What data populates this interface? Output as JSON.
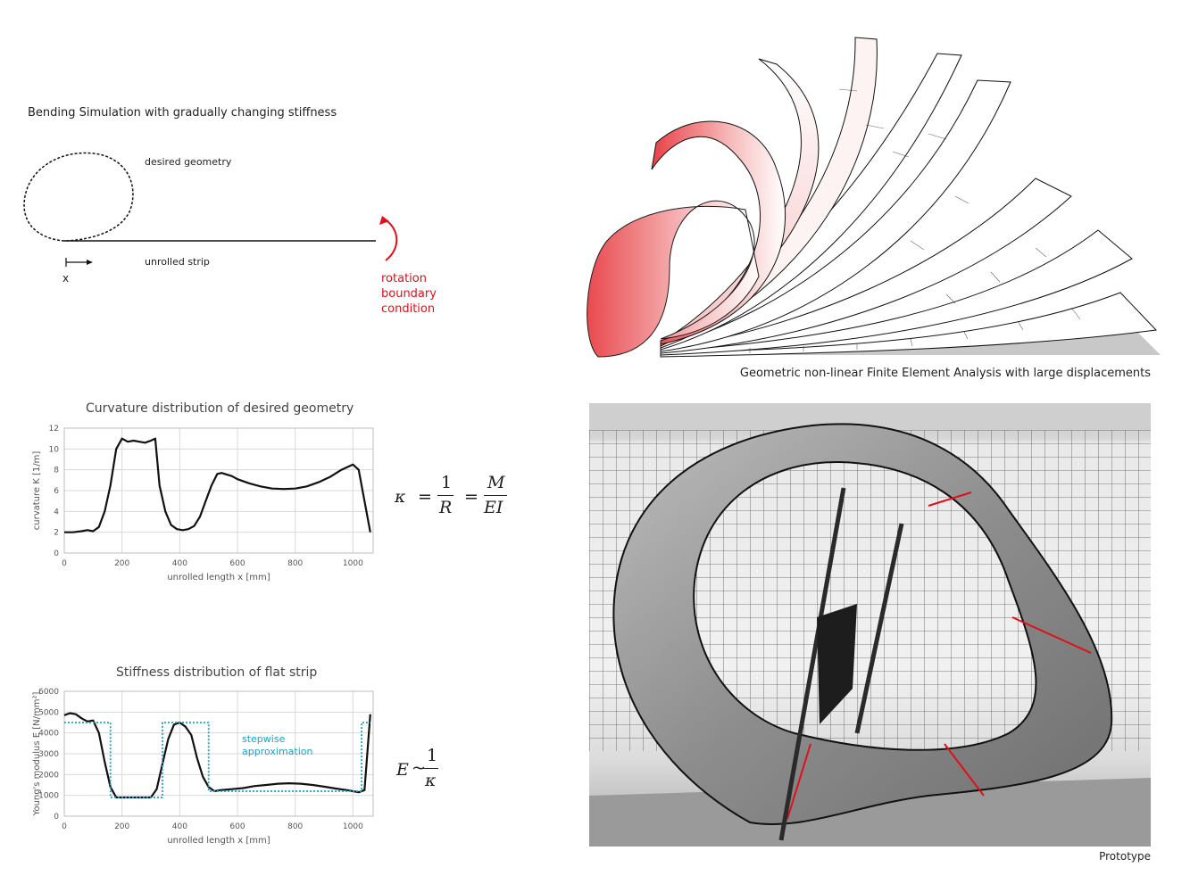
{
  "top_left": {
    "title": "Bending Simulation with gradually changing stiffness",
    "desired_geometry_label": "desired geometry",
    "unrolled_strip_label": "unrolled strip",
    "x_label": "x",
    "boundary_label_1": "rotation",
    "boundary_label_2": "boundary",
    "boundary_label_3": "condition",
    "accent_color": "#e0101a"
  },
  "fea": {
    "caption": "Geometric non-linear Finite Element Analysis with large displacements"
  },
  "prototype": {
    "caption": "Prototype"
  },
  "equations": {
    "curvature": {
      "kappa": "κ",
      "eq1": "=",
      "num1": "1",
      "den1": "R",
      "eq2": "=",
      "num2": "M",
      "den2": "EI"
    },
    "stiffness": {
      "lhs": "E",
      "tilde": "~",
      "num": "1",
      "den": "κ"
    }
  },
  "chart_data": [
    {
      "type": "line",
      "title": "Curvature distribution of desired geometry",
      "xlabel": "unrolled length x [mm]",
      "ylabel": "curvature K [1/m]",
      "xlim": [
        0,
        1070
      ],
      "ylim": [
        0,
        12
      ],
      "xticks": [
        "0",
        "200",
        "400",
        "600",
        "800",
        "1000"
      ],
      "yticks": [
        "0",
        "2",
        "4",
        "6",
        "8",
        "10",
        "12"
      ],
      "xtick_values": [
        0,
        200,
        400,
        600,
        800,
        1000
      ],
      "ytick_values": [
        0,
        2,
        4,
        6,
        8,
        10,
        12
      ],
      "grid": true,
      "series": [
        {
          "color": "#111111",
          "x": [
            0,
            30,
            60,
            80,
            100,
            120,
            140,
            160,
            180,
            200,
            220,
            240,
            260,
            280,
            300,
            315,
            330,
            350,
            370,
            390,
            410,
            430,
            450,
            470,
            490,
            510,
            530,
            545,
            580,
            600,
            640,
            680,
            720,
            760,
            800,
            840,
            880,
            920,
            960,
            1000,
            1020,
            1040,
            1060
          ],
          "y": [
            2.0,
            2.0,
            2.1,
            2.2,
            2.1,
            2.5,
            4.0,
            6.5,
            10.0,
            11.0,
            10.7,
            10.8,
            10.7,
            10.6,
            10.8,
            11.0,
            6.5,
            4.0,
            2.7,
            2.3,
            2.2,
            2.3,
            2.6,
            3.5,
            5.0,
            6.5,
            7.6,
            7.7,
            7.4,
            7.1,
            6.7,
            6.4,
            6.2,
            6.15,
            6.2,
            6.4,
            6.8,
            7.3,
            8.0,
            8.5,
            8.0,
            5.0,
            2.0
          ]
        }
      ]
    },
    {
      "type": "line",
      "title": "Stiffness distribution of flat strip",
      "xlabel": "unrolled length x [mm]",
      "ylabel": "Young's modulus E [N/mm²]",
      "xlim": [
        0,
        1070
      ],
      "ylim": [
        0,
        6000
      ],
      "xticks": [
        "0",
        "200",
        "400",
        "600",
        "800",
        "1000"
      ],
      "yticks": [
        "0",
        "1000",
        "2000",
        "3000",
        "4000",
        "5000",
        "6000"
      ],
      "xtick_values": [
        0,
        200,
        400,
        600,
        800,
        1000
      ],
      "ytick_values": [
        0,
        1000,
        2000,
        3000,
        4000,
        5000,
        6000
      ],
      "grid": true,
      "annotation": [
        "stepwise",
        "approximation"
      ],
      "series": [
        {
          "color": "#111111",
          "x": [
            0,
            20,
            40,
            60,
            80,
            100,
            120,
            140,
            160,
            180,
            200,
            220,
            240,
            260,
            280,
            300,
            320,
            340,
            360,
            380,
            400,
            420,
            440,
            460,
            480,
            500,
            520,
            540,
            580,
            620,
            660,
            700,
            740,
            780,
            820,
            860,
            900,
            940,
            980,
            1020,
            1040,
            1060
          ],
          "y": [
            4850,
            4950,
            4900,
            4700,
            4550,
            4600,
            4000,
            2600,
            1400,
            900,
            900,
            900,
            900,
            900,
            900,
            900,
            1300,
            2500,
            3700,
            4400,
            4500,
            4300,
            3900,
            2800,
            1900,
            1400,
            1200,
            1250,
            1300,
            1350,
            1450,
            1500,
            1560,
            1580,
            1560,
            1500,
            1420,
            1330,
            1250,
            1150,
            1250,
            4900
          ]
        },
        {
          "color": "#1aa3c8",
          "dashed": true,
          "x": [
            0,
            160,
            160,
            340,
            340,
            500,
            500,
            1030,
            1030,
            1060
          ],
          "y": [
            4500,
            4500,
            900,
            900,
            4500,
            4500,
            1200,
            1200,
            4500,
            4500
          ]
        }
      ]
    }
  ]
}
